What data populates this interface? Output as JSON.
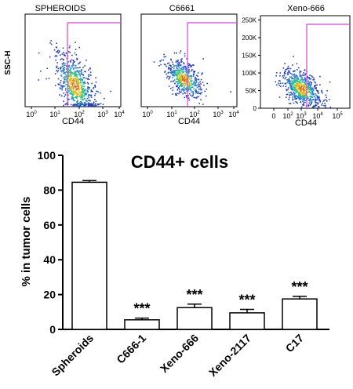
{
  "chart_data": [
    {
      "type": "scatter",
      "title": "SPHEROIDS",
      "xlabel": "CD44",
      "ylabel": "SSC-H",
      "x_scale": "log",
      "x_ticks": [
        {
          "base": "10",
          "exp": "0"
        },
        {
          "base": "10",
          "exp": "1"
        },
        {
          "base": "10",
          "exp": "2"
        },
        {
          "base": "10",
          "exp": "3"
        },
        {
          "base": "10",
          "exp": "4"
        }
      ],
      "gate": {
        "x_threshold_log10": 1.75,
        "label": "CD44+ gate"
      },
      "gate_color": "#e040e0",
      "density_colors": [
        "#1f3fbf",
        "#2a7fd4",
        "#2fbf8a",
        "#d8c21d",
        "#e0701c"
      ]
    },
    {
      "type": "scatter",
      "title": "C6661",
      "xlabel": "CD44",
      "x_scale": "log",
      "x_ticks": [
        {
          "base": "10",
          "exp": "0"
        },
        {
          "base": "10",
          "exp": "1"
        },
        {
          "base": "10",
          "exp": "2"
        },
        {
          "base": "10",
          "exp": "3"
        },
        {
          "base": "10",
          "exp": "4"
        }
      ],
      "gate": {
        "x_threshold_log10": 1.95
      },
      "gate_color": "#e040e0"
    },
    {
      "type": "scatter",
      "title": "Xeno-666",
      "xlabel": "CD44",
      "x_scale": "biexponential",
      "x_ticks": [
        {
          "base": "0",
          "exp": ""
        },
        {
          "base": "10",
          "exp": "2"
        },
        {
          "base": "10",
          "exp": "3"
        },
        {
          "base": "10",
          "exp": "4"
        },
        {
          "base": "10",
          "exp": "5"
        }
      ],
      "y_ticks": [
        "0",
        "50K",
        "100K",
        "150K",
        "200K",
        "250K"
      ],
      "ylim": [
        0,
        262144
      ],
      "gate": {
        "x_threshold_log10": 2.9
      },
      "gate_color": "#e040e0"
    },
    {
      "type": "bar",
      "title": "CD44+ cells",
      "ylabel": "% in tumor cells",
      "ylim": [
        0,
        100
      ],
      "y_ticks": [
        "0",
        "20",
        "40",
        "60",
        "80",
        "100"
      ],
      "categories": [
        "Spheroids",
        "C666-1",
        "Xeno-666",
        "Xeno-2117",
        "C17"
      ],
      "values": [
        84.5,
        5.5,
        12.5,
        9.5,
        17.5
      ],
      "errors": [
        1.0,
        1.0,
        2.0,
        2.0,
        1.5
      ],
      "significance": [
        "",
        "***",
        "***",
        "***",
        "***"
      ]
    }
  ]
}
